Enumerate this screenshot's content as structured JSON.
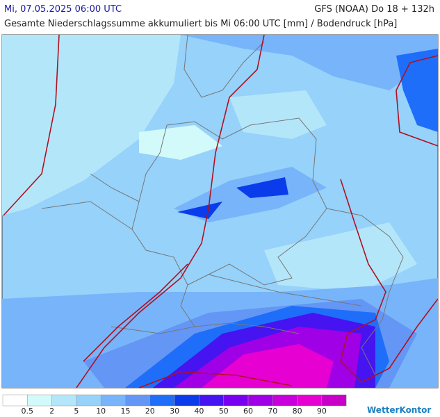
{
  "header": {
    "datetime": "Mi, 07.05.2025 06:00 UTC",
    "model": "GFS (NOAA) Do 18 + 132h",
    "subtitle": "Gesamte Niederschlagssumme akkumuliert bis Mi 06:00 UTC [mm] / Bodendruck [hPa]"
  },
  "legend": {
    "labels": [
      0.5,
      2,
      5,
      10,
      15,
      20,
      30,
      40,
      50,
      60,
      70,
      80,
      90
    ],
    "colors": [
      "#ffffff",
      "#d2fafa",
      "#b4e6fa",
      "#96d2fa",
      "#78b4fa",
      "#6496f5",
      "#1e6efa",
      "#0a3ceb",
      "#4614f0",
      "#7800f0",
      "#a000e6",
      "#c800dc",
      "#e600d2",
      "#c800c8"
    ]
  },
  "brand": "WetterKontor"
}
